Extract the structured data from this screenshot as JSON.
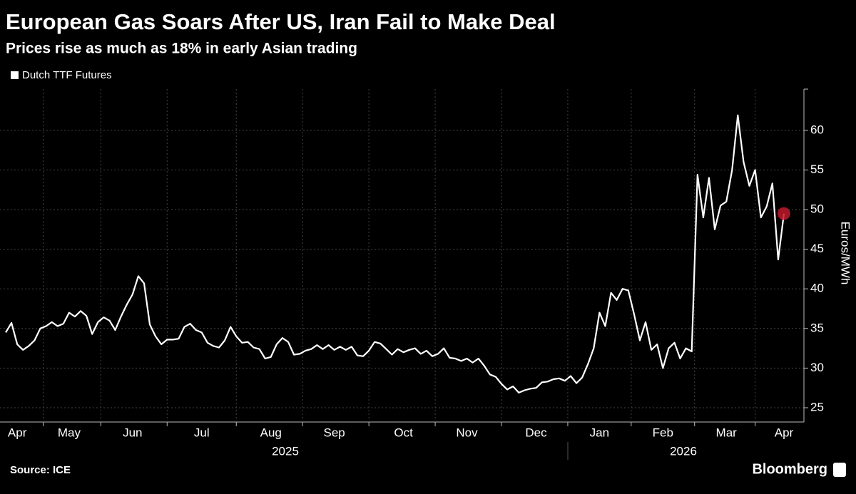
{
  "chart_data": {
    "type": "line",
    "title": "European Gas Soars After US, Iran Fail to Make Deal",
    "subtitle": "Prices rise as much as 18% in early Asian trading",
    "y_label": "Euros/MWh",
    "source": "Source: ICE",
    "brand": "Bloomberg",
    "year_labels": [
      "2025",
      "2026"
    ],
    "categories": [
      null,
      null,
      "Apr",
      null,
      null,
      null,
      null,
      null,
      null,
      null,
      null,
      "May",
      null,
      null,
      null,
      null,
      null,
      null,
      null,
      null,
      null,
      null,
      "Jun",
      null,
      null,
      null,
      null,
      null,
      null,
      null,
      null,
      null,
      null,
      null,
      "Jul",
      null,
      null,
      null,
      null,
      null,
      null,
      null,
      null,
      null,
      null,
      null,
      "Aug",
      null,
      null,
      null,
      null,
      null,
      null,
      null,
      null,
      null,
      null,
      "Sep",
      null,
      null,
      null,
      null,
      null,
      null,
      null,
      null,
      null,
      null,
      null,
      "Oct",
      null,
      null,
      null,
      null,
      null,
      null,
      null,
      null,
      null,
      null,
      "Nov",
      null,
      null,
      null,
      null,
      null,
      null,
      null,
      null,
      null,
      null,
      null,
      "Dec",
      null,
      null,
      null,
      null,
      null,
      null,
      null,
      null,
      null,
      null,
      "Jan",
      null,
      null,
      null,
      null,
      null,
      null,
      null,
      null,
      null,
      null,
      "Feb",
      null,
      null,
      null,
      null,
      null,
      null,
      null,
      null,
      null,
      null,
      "Mar",
      null,
      null,
      null,
      null,
      null,
      null,
      null,
      null,
      null,
      "Apr"
    ],
    "series": [
      {
        "name": "Dutch TTF Futures",
        "color": "#ffffff",
        "values": [
          34.5,
          35.7,
          33,
          32.3,
          32.8,
          33.5,
          35,
          35.3,
          35.8,
          35.3,
          35.6,
          37,
          36.5,
          37.2,
          36.6,
          34.3,
          35.8,
          36.4,
          36,
          34.8,
          36.5,
          38,
          39.3,
          41.6,
          40.7,
          35.5,
          34,
          33,
          33.6,
          33.6,
          33.7,
          35.2,
          35.6,
          34.8,
          34.5,
          33.2,
          32.8,
          32.6,
          33.5,
          35.2,
          34,
          33.2,
          33.3,
          32.6,
          32.4,
          31.2,
          31.4,
          33,
          33.8,
          33.3,
          31.7,
          31.8,
          32.2,
          32.4,
          32.9,
          32.4,
          32.9,
          32.3,
          32.7,
          32.3,
          32.7,
          31.6,
          31.5,
          32.2,
          33.3,
          33.1,
          32.4,
          31.7,
          32.4,
          32,
          32.3,
          32.5,
          31.8,
          32.2,
          31.5,
          31.8,
          32.5,
          31.3,
          31.2,
          30.9,
          31.2,
          30.7,
          31.2,
          30.3,
          29.2,
          28.9,
          28,
          27.3,
          27.7,
          26.9,
          27.2,
          27.4,
          27.5,
          28.2,
          28.3,
          28.6,
          28.7,
          28.4,
          29,
          28.1,
          28.8,
          30.5,
          32.5,
          37,
          35.3,
          39.5,
          38.6,
          40,
          39.8,
          36.8,
          33.5,
          35.8,
          32.3,
          33,
          30,
          32.5,
          33.2,
          31.2,
          32.5,
          32.1,
          54.4,
          49,
          54,
          47.5,
          50.5,
          51,
          55,
          61.9,
          56,
          53,
          55,
          49,
          50.4,
          53.3,
          43.7,
          49.5
        ]
      }
    ],
    "highlight_color": "#c0182a",
    "ylim": [
      23.2,
      65.2
    ],
    "yticks": [
      25,
      30,
      35,
      40,
      45,
      50,
      55,
      60
    ],
    "grid": true
  }
}
